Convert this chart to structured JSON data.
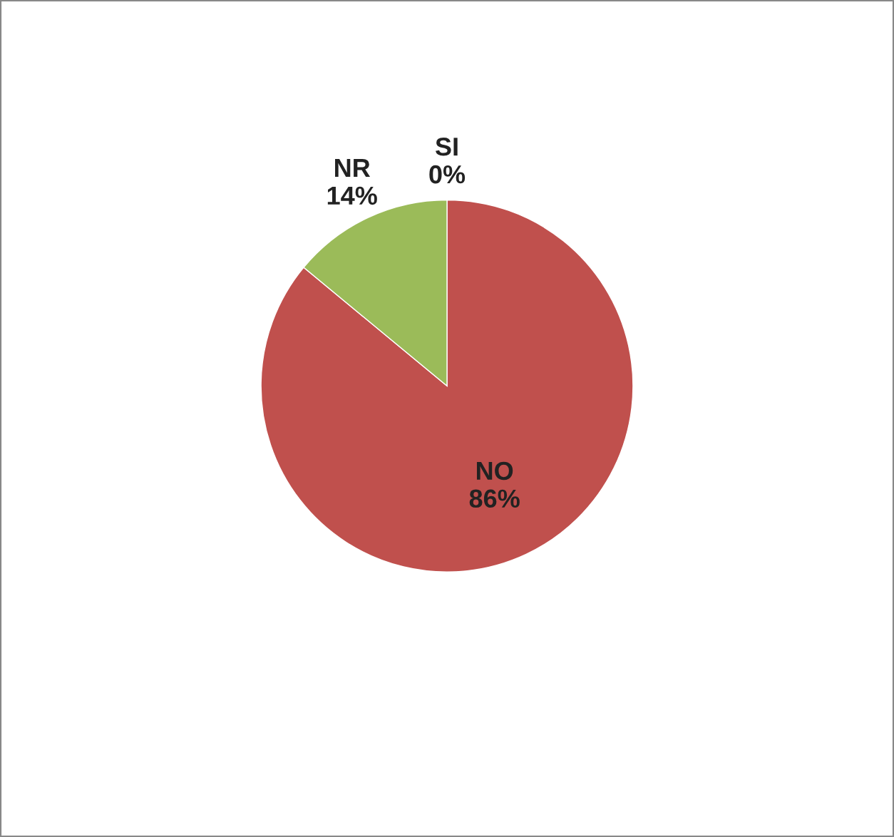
{
  "chart_data": {
    "type": "pie",
    "categories": [
      "SI",
      "NO",
      "NR"
    ],
    "values": [
      0,
      86,
      14
    ],
    "colors": [
      "#4f81bd",
      "#c0504d",
      "#9bbb59"
    ],
    "value_labels": [
      "0%",
      "86%",
      "14%"
    ],
    "legend": false
  }
}
